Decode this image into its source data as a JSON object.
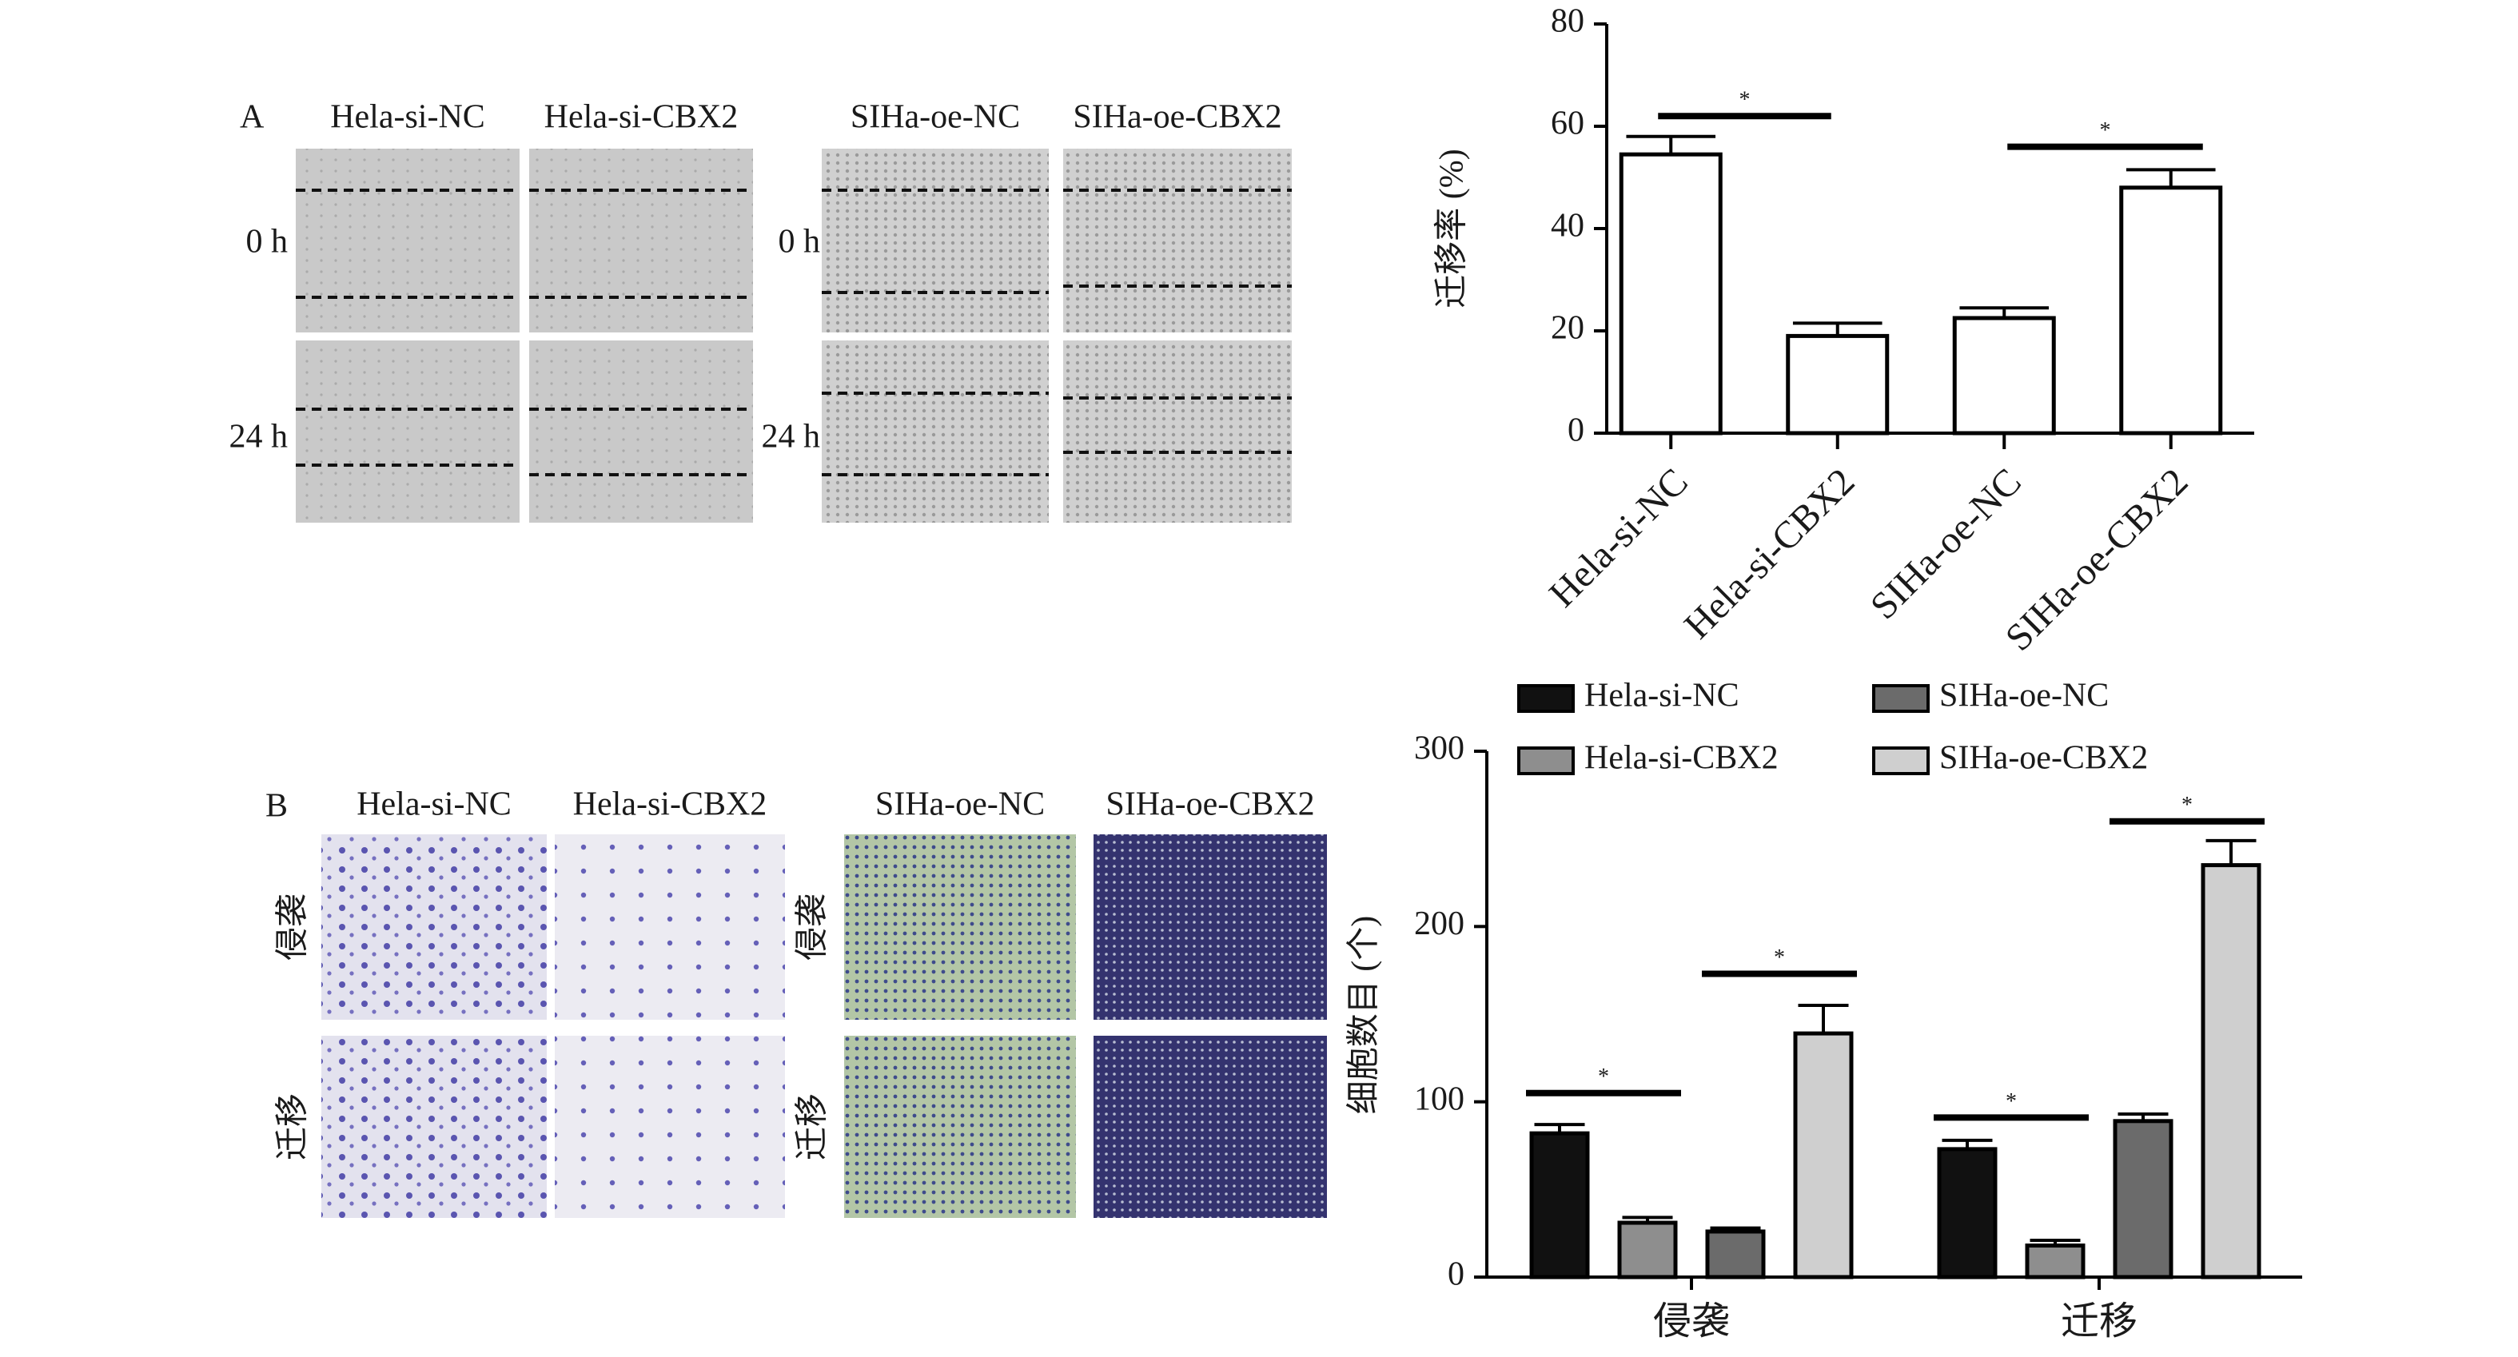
{
  "panels": [
    {
      "label": "A",
      "columns": [
        "Hela-si-NC",
        "Hela-si-CBX2",
        "SIHa-oe-NC",
        "SIHa-oe-CBX2"
      ],
      "rows": [
        "0 h",
        "24 h"
      ]
    },
    {
      "label": "B",
      "columns": [
        "Hela-si-NC",
        "Hela-si-CBX2",
        "SIHa-oe-NC",
        "SIHa-oe-CBX2"
      ],
      "rows": [
        "侵袭",
        "迁移"
      ]
    }
  ],
  "chart_data": [
    {
      "type": "bar",
      "y_label": "迁移率 (%)",
      "categories": [
        "Hela-si-NC",
        "Hela-si-CBX2",
        "SIHa-oe-NC",
        "SIHa-oe-CBX2"
      ],
      "values": [
        54.5,
        19,
        22.5,
        48
      ],
      "errors": [
        3.5,
        2.5,
        2,
        3.5
      ],
      "color": "#ffffff",
      "edgecolor": "#000000",
      "ylim": [
        0,
        80
      ],
      "yticks": [
        0,
        20,
        40,
        60,
        80
      ],
      "significance": [
        {
          "label": "*",
          "y": 62
        },
        {
          "label": "*",
          "y": 56
        }
      ]
    },
    {
      "type": "bar",
      "y_label": "细胞数目 (个)",
      "categories": [
        "侵袭",
        "迁移"
      ],
      "series": [
        {
          "name": "Hela-si-NC",
          "color": "#111111",
          "values": [
            82,
            73
          ],
          "errors": [
            5,
            5
          ]
        },
        {
          "name": "Hela-si-CBX2",
          "color": "#8e8e8e",
          "values": [
            31,
            18
          ],
          "errors": [
            3,
            3
          ]
        },
        {
          "name": "SIHa-oe-NC",
          "color": "#6b6b6b",
          "values": [
            26,
            89
          ],
          "errors": [
            2,
            4
          ]
        },
        {
          "name": "SIHa-oe-CBX2",
          "color": "#cfcfcf",
          "values": [
            139,
            235
          ],
          "errors": [
            16,
            14
          ]
        }
      ],
      "edgecolor": "#000000",
      "ylim": [
        0,
        300
      ],
      "yticks": [
        0,
        100,
        200,
        300
      ],
      "significance": [
        {
          "label": "*",
          "y": 105
        },
        {
          "label": "*",
          "y": 173
        },
        {
          "label": "*",
          "y": 91
        },
        {
          "label": "*",
          "y": 260
        }
      ]
    }
  ]
}
